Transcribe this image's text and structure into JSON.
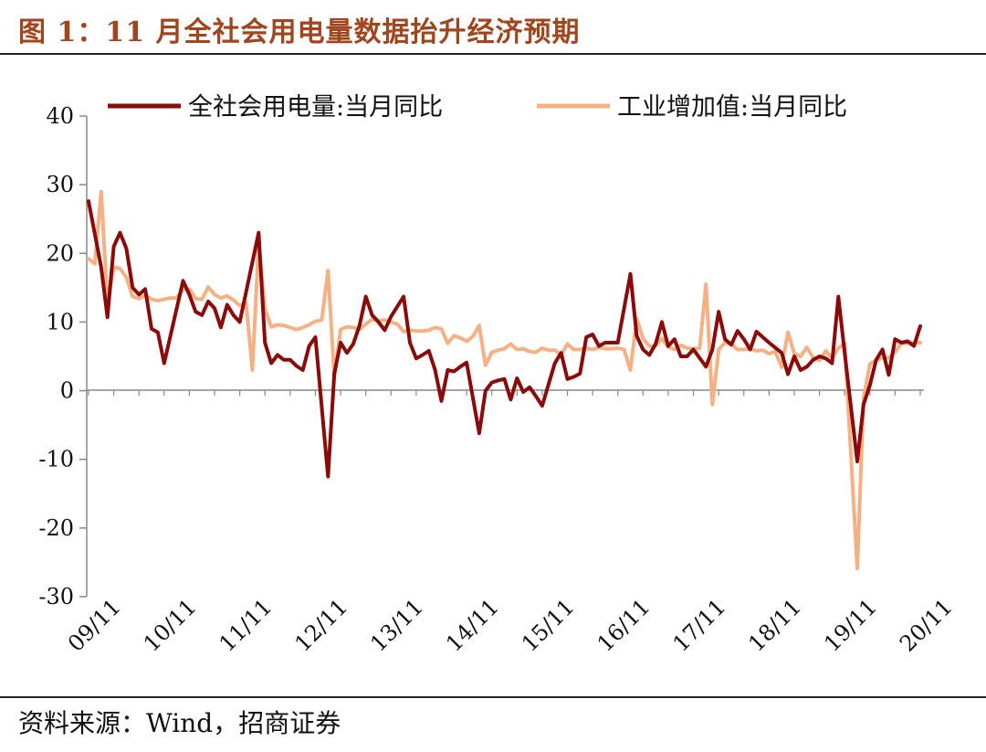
{
  "figure": {
    "title": "图 1：11 月全社会用电量数据抬升经济预期",
    "source": "资料来源：Wind，招商证券"
  },
  "chart_data": {
    "type": "line",
    "ylim": [
      -30,
      40
    ],
    "yticks": [
      40,
      30,
      20,
      10,
      0,
      -10,
      -20,
      -30
    ],
    "xtick_labels": [
      "09/11",
      "10/11",
      "11/11",
      "12/11",
      "13/11",
      "14/11",
      "15/11",
      "16/11",
      "17/11",
      "18/11",
      "19/11",
      "20/11"
    ],
    "xtick_months": [
      0,
      12,
      24,
      36,
      48,
      60,
      72,
      84,
      96,
      108,
      120,
      132
    ],
    "legend_position": "top",
    "grid": false,
    "x_start": "2009-11",
    "x_end": "2020-11",
    "series": [
      {
        "name": "全社会用电量:当月同比",
        "color": "#8b0a0a",
        "points": [
          [
            "2009-11",
            27.6
          ],
          [
            "2010-01",
            18
          ],
          [
            "2010-02",
            10.7
          ],
          [
            "2010-03",
            21
          ],
          [
            "2010-04",
            23
          ],
          [
            "2010-05",
            20.7
          ],
          [
            "2010-06",
            15
          ],
          [
            "2010-07",
            14
          ],
          [
            "2010-08",
            14.8
          ],
          [
            "2010-09",
            9
          ],
          [
            "2010-10",
            8.5
          ],
          [
            "2010-11",
            4
          ],
          [
            "2010-12",
            8
          ],
          [
            "2011-02",
            16
          ],
          [
            "2011-03",
            14
          ],
          [
            "2011-04",
            11.5
          ],
          [
            "2011-05",
            11
          ],
          [
            "2011-06",
            13
          ],
          [
            "2011-07",
            12
          ],
          [
            "2011-08",
            9.2
          ],
          [
            "2011-09",
            12.5
          ],
          [
            "2011-10",
            11
          ],
          [
            "2011-11",
            10
          ],
          [
            "2012-02",
            23
          ],
          [
            "2012-03",
            7
          ],
          [
            "2012-04",
            4
          ],
          [
            "2012-05",
            5.2
          ],
          [
            "2012-06",
            4.5
          ],
          [
            "2012-07",
            4.5
          ],
          [
            "2012-08",
            3.6
          ],
          [
            "2012-09",
            3
          ],
          [
            "2012-10",
            6.5
          ],
          [
            "2012-11",
            7.8
          ],
          [
            "2013-01",
            -12.5
          ],
          [
            "2013-02",
            2.5
          ],
          [
            "2013-03",
            7
          ],
          [
            "2013-04",
            5.5
          ],
          [
            "2013-05",
            6.8
          ],
          [
            "2013-06",
            9.5
          ],
          [
            "2013-07",
            13.7
          ],
          [
            "2013-08",
            11
          ],
          [
            "2013-09",
            10
          ],
          [
            "2013-10",
            8.8
          ],
          [
            "2013-11",
            10.8
          ],
          [
            "2014-01",
            13.7
          ],
          [
            "2014-02",
            7
          ],
          [
            "2014-03",
            4.7
          ],
          [
            "2014-04",
            5.2
          ],
          [
            "2014-05",
            5.8
          ],
          [
            "2014-06",
            3
          ],
          [
            "2014-07",
            -1.5
          ],
          [
            "2014-08",
            3
          ],
          [
            "2014-09",
            2.8
          ],
          [
            "2014-10",
            3.5
          ],
          [
            "2014-11",
            4.1
          ],
          [
            "2015-01",
            -6.2
          ],
          [
            "2015-02",
            0
          ],
          [
            "2015-03",
            1.2
          ],
          [
            "2015-04",
            1.5
          ],
          [
            "2015-05",
            1.7
          ],
          [
            "2015-06",
            -1.3
          ],
          [
            "2015-07",
            1.8
          ],
          [
            "2015-08",
            -0.2
          ],
          [
            "2015-09",
            0.5
          ],
          [
            "2015-10",
            -0.8
          ],
          [
            "2015-11",
            -2.2
          ],
          [
            "2016-01",
            4
          ],
          [
            "2016-02",
            5.5
          ],
          [
            "2016-03",
            1.7
          ],
          [
            "2016-04",
            2
          ],
          [
            "2016-05",
            2.5
          ],
          [
            "2016-06",
            7.8
          ],
          [
            "2016-07",
            8.2
          ],
          [
            "2016-08",
            6.5
          ],
          [
            "2016-09",
            7
          ],
          [
            "2016-10",
            7
          ],
          [
            "2016-11",
            7
          ],
          [
            "2017-01",
            17
          ],
          [
            "2017-02",
            8
          ],
          [
            "2017-03",
            6
          ],
          [
            "2017-04",
            5.2
          ],
          [
            "2017-05",
            6.8
          ],
          [
            "2017-06",
            10
          ],
          [
            "2017-07",
            6.5
          ],
          [
            "2017-08",
            7.5
          ],
          [
            "2017-09",
            5
          ],
          [
            "2017-10",
            5
          ],
          [
            "2017-11",
            6
          ],
          [
            "2018-01",
            3.5
          ],
          [
            "2018-02",
            6
          ],
          [
            "2018-03",
            11.5
          ],
          [
            "2018-04",
            7.5
          ],
          [
            "2018-05",
            6.7
          ],
          [
            "2018-06",
            8.7
          ],
          [
            "2018-07",
            7.5
          ],
          [
            "2018-08",
            6
          ],
          [
            "2018-09",
            8.6
          ],
          [
            "2018-10",
            7.8
          ],
          [
            "2018-11",
            7
          ],
          [
            "2019-01",
            5.5
          ],
          [
            "2019-02",
            2.4
          ],
          [
            "2019-03",
            5
          ],
          [
            "2019-04",
            3
          ],
          [
            "2019-05",
            3.5
          ],
          [
            "2019-06",
            4.5
          ],
          [
            "2019-07",
            5
          ],
          [
            "2019-08",
            4.7
          ],
          [
            "2019-09",
            4
          ],
          [
            "2019-10",
            13.7
          ],
          [
            "2019-11",
            5.5
          ],
          [
            "2020-01",
            -10.3
          ],
          [
            "2020-02",
            -2
          ],
          [
            "2020-03",
            0.8
          ],
          [
            "2020-04",
            4.5
          ],
          [
            "2020-05",
            6
          ],
          [
            "2020-06",
            2.3
          ],
          [
            "2020-07",
            7.5
          ],
          [
            "2020-08",
            7
          ],
          [
            "2020-09",
            7.2
          ],
          [
            "2020-10",
            6.5
          ],
          [
            "2020-11",
            9.4
          ]
        ]
      },
      {
        "name": "工业增加值:当月同比",
        "color": "#f5b183",
        "points": [
          [
            "2009-11",
            19.2
          ],
          [
            "2009-12",
            18.5
          ],
          [
            "2010-01",
            29
          ],
          [
            "2010-02",
            12.8
          ],
          [
            "2010-03",
            18
          ],
          [
            "2010-04",
            17.8
          ],
          [
            "2010-05",
            16.5
          ],
          [
            "2010-06",
            13.7
          ],
          [
            "2010-07",
            13.4
          ],
          [
            "2010-08",
            13.9
          ],
          [
            "2010-09",
            13.3
          ],
          [
            "2010-10",
            13.1
          ],
          [
            "2010-11",
            13.3
          ],
          [
            "2010-12",
            13.5
          ],
          [
            "2011-01",
            13.5
          ],
          [
            "2011-02",
            14.8
          ],
          [
            "2011-03",
            14.8
          ],
          [
            "2011-04",
            13.4
          ],
          [
            "2011-05",
            13.3
          ],
          [
            "2011-06",
            15.1
          ],
          [
            "2011-07",
            14
          ],
          [
            "2011-08",
            13.5
          ],
          [
            "2011-09",
            13.8
          ],
          [
            "2011-10",
            13.2
          ],
          [
            "2011-11",
            12.4
          ],
          [
            "2011-12",
            12.8
          ],
          [
            "2012-01",
            3
          ],
          [
            "2012-02",
            21.3
          ],
          [
            "2012-03",
            11.9
          ],
          [
            "2012-04",
            9.3
          ],
          [
            "2012-05",
            9.6
          ],
          [
            "2012-06",
            9.5
          ],
          [
            "2012-07",
            9.2
          ],
          [
            "2012-08",
            8.9
          ],
          [
            "2012-09",
            9.2
          ],
          [
            "2012-10",
            9.6
          ],
          [
            "2012-11",
            10.1
          ],
          [
            "2012-12",
            10.3
          ],
          [
            "2013-01",
            17.5
          ],
          [
            "2013-02",
            2
          ],
          [
            "2013-03",
            8.9
          ],
          [
            "2013-04",
            9.3
          ],
          [
            "2013-05",
            9.2
          ],
          [
            "2013-06",
            8.9
          ],
          [
            "2013-07",
            9.7
          ],
          [
            "2013-08",
            10.4
          ],
          [
            "2013-09",
            10.2
          ],
          [
            "2013-10",
            10.3
          ],
          [
            "2013-11",
            10
          ],
          [
            "2013-12",
            9.7
          ],
          [
            "2014-01",
            8.6
          ],
          [
            "2014-02",
            8.8
          ],
          [
            "2014-03",
            8.7
          ],
          [
            "2014-04",
            8.7
          ],
          [
            "2014-05",
            8.8
          ],
          [
            "2014-06",
            9.2
          ],
          [
            "2014-07",
            9
          ],
          [
            "2014-08",
            6.9
          ],
          [
            "2014-09",
            8
          ],
          [
            "2014-10",
            7.7
          ],
          [
            "2014-11",
            7.2
          ],
          [
            "2014-12",
            7.9
          ],
          [
            "2015-01",
            9.5
          ],
          [
            "2015-02",
            3.7
          ],
          [
            "2015-03",
            5.6
          ],
          [
            "2015-04",
            5.9
          ],
          [
            "2015-05",
            6.1
          ],
          [
            "2015-06",
            6.8
          ],
          [
            "2015-07",
            6
          ],
          [
            "2015-08",
            6.1
          ],
          [
            "2015-09",
            5.7
          ],
          [
            "2015-10",
            5.6
          ],
          [
            "2015-11",
            6.2
          ],
          [
            "2015-12",
            5.9
          ],
          [
            "2016-01",
            5.9
          ],
          [
            "2016-02",
            5.2
          ],
          [
            "2016-03",
            6.8
          ],
          [
            "2016-04",
            6
          ],
          [
            "2016-05",
            6
          ],
          [
            "2016-06",
            6.2
          ],
          [
            "2016-07",
            6
          ],
          [
            "2016-08",
            6.3
          ],
          [
            "2016-09",
            6.1
          ],
          [
            "2016-10",
            6.1
          ],
          [
            "2016-11",
            6.2
          ],
          [
            "2016-12",
            6
          ],
          [
            "2017-01",
            3
          ],
          [
            "2017-02",
            10.5
          ],
          [
            "2017-03",
            7.6
          ],
          [
            "2017-04",
            6.5
          ],
          [
            "2017-05",
            6.5
          ],
          [
            "2017-06",
            7.6
          ],
          [
            "2017-07",
            6.4
          ],
          [
            "2017-08",
            6
          ],
          [
            "2017-09",
            6.6
          ],
          [
            "2017-10",
            6.2
          ],
          [
            "2017-11",
            6.1
          ],
          [
            "2017-12",
            6.2
          ],
          [
            "2018-01",
            15.5
          ],
          [
            "2018-02",
            -2
          ],
          [
            "2018-03",
            6
          ],
          [
            "2018-04",
            7
          ],
          [
            "2018-05",
            6.8
          ],
          [
            "2018-06",
            6
          ],
          [
            "2018-07",
            6
          ],
          [
            "2018-08",
            6.1
          ],
          [
            "2018-09",
            5.8
          ],
          [
            "2018-10",
            5.9
          ],
          [
            "2018-11",
            5.4
          ],
          [
            "2018-12",
            5.7
          ],
          [
            "2019-01",
            3.4
          ],
          [
            "2019-02",
            8.5
          ],
          [
            "2019-03",
            5.4
          ],
          [
            "2019-04",
            5
          ],
          [
            "2019-05",
            6.3
          ],
          [
            "2019-06",
            4.8
          ],
          [
            "2019-07",
            4.4
          ],
          [
            "2019-08",
            5.8
          ],
          [
            "2019-09",
            4.7
          ],
          [
            "2019-10",
            6.2
          ],
          [
            "2019-11",
            6.9
          ],
          [
            "2020-01",
            -25.9
          ],
          [
            "2020-02",
            -1.1
          ],
          [
            "2020-03",
            3.9
          ],
          [
            "2020-04",
            4.4
          ],
          [
            "2020-05",
            4.8
          ],
          [
            "2020-06",
            4.8
          ],
          [
            "2020-07",
            5.6
          ],
          [
            "2020-08",
            6.9
          ],
          [
            "2020-09",
            6.9
          ],
          [
            "2020-10",
            7
          ],
          [
            "2020-11",
            7
          ]
        ]
      }
    ]
  }
}
